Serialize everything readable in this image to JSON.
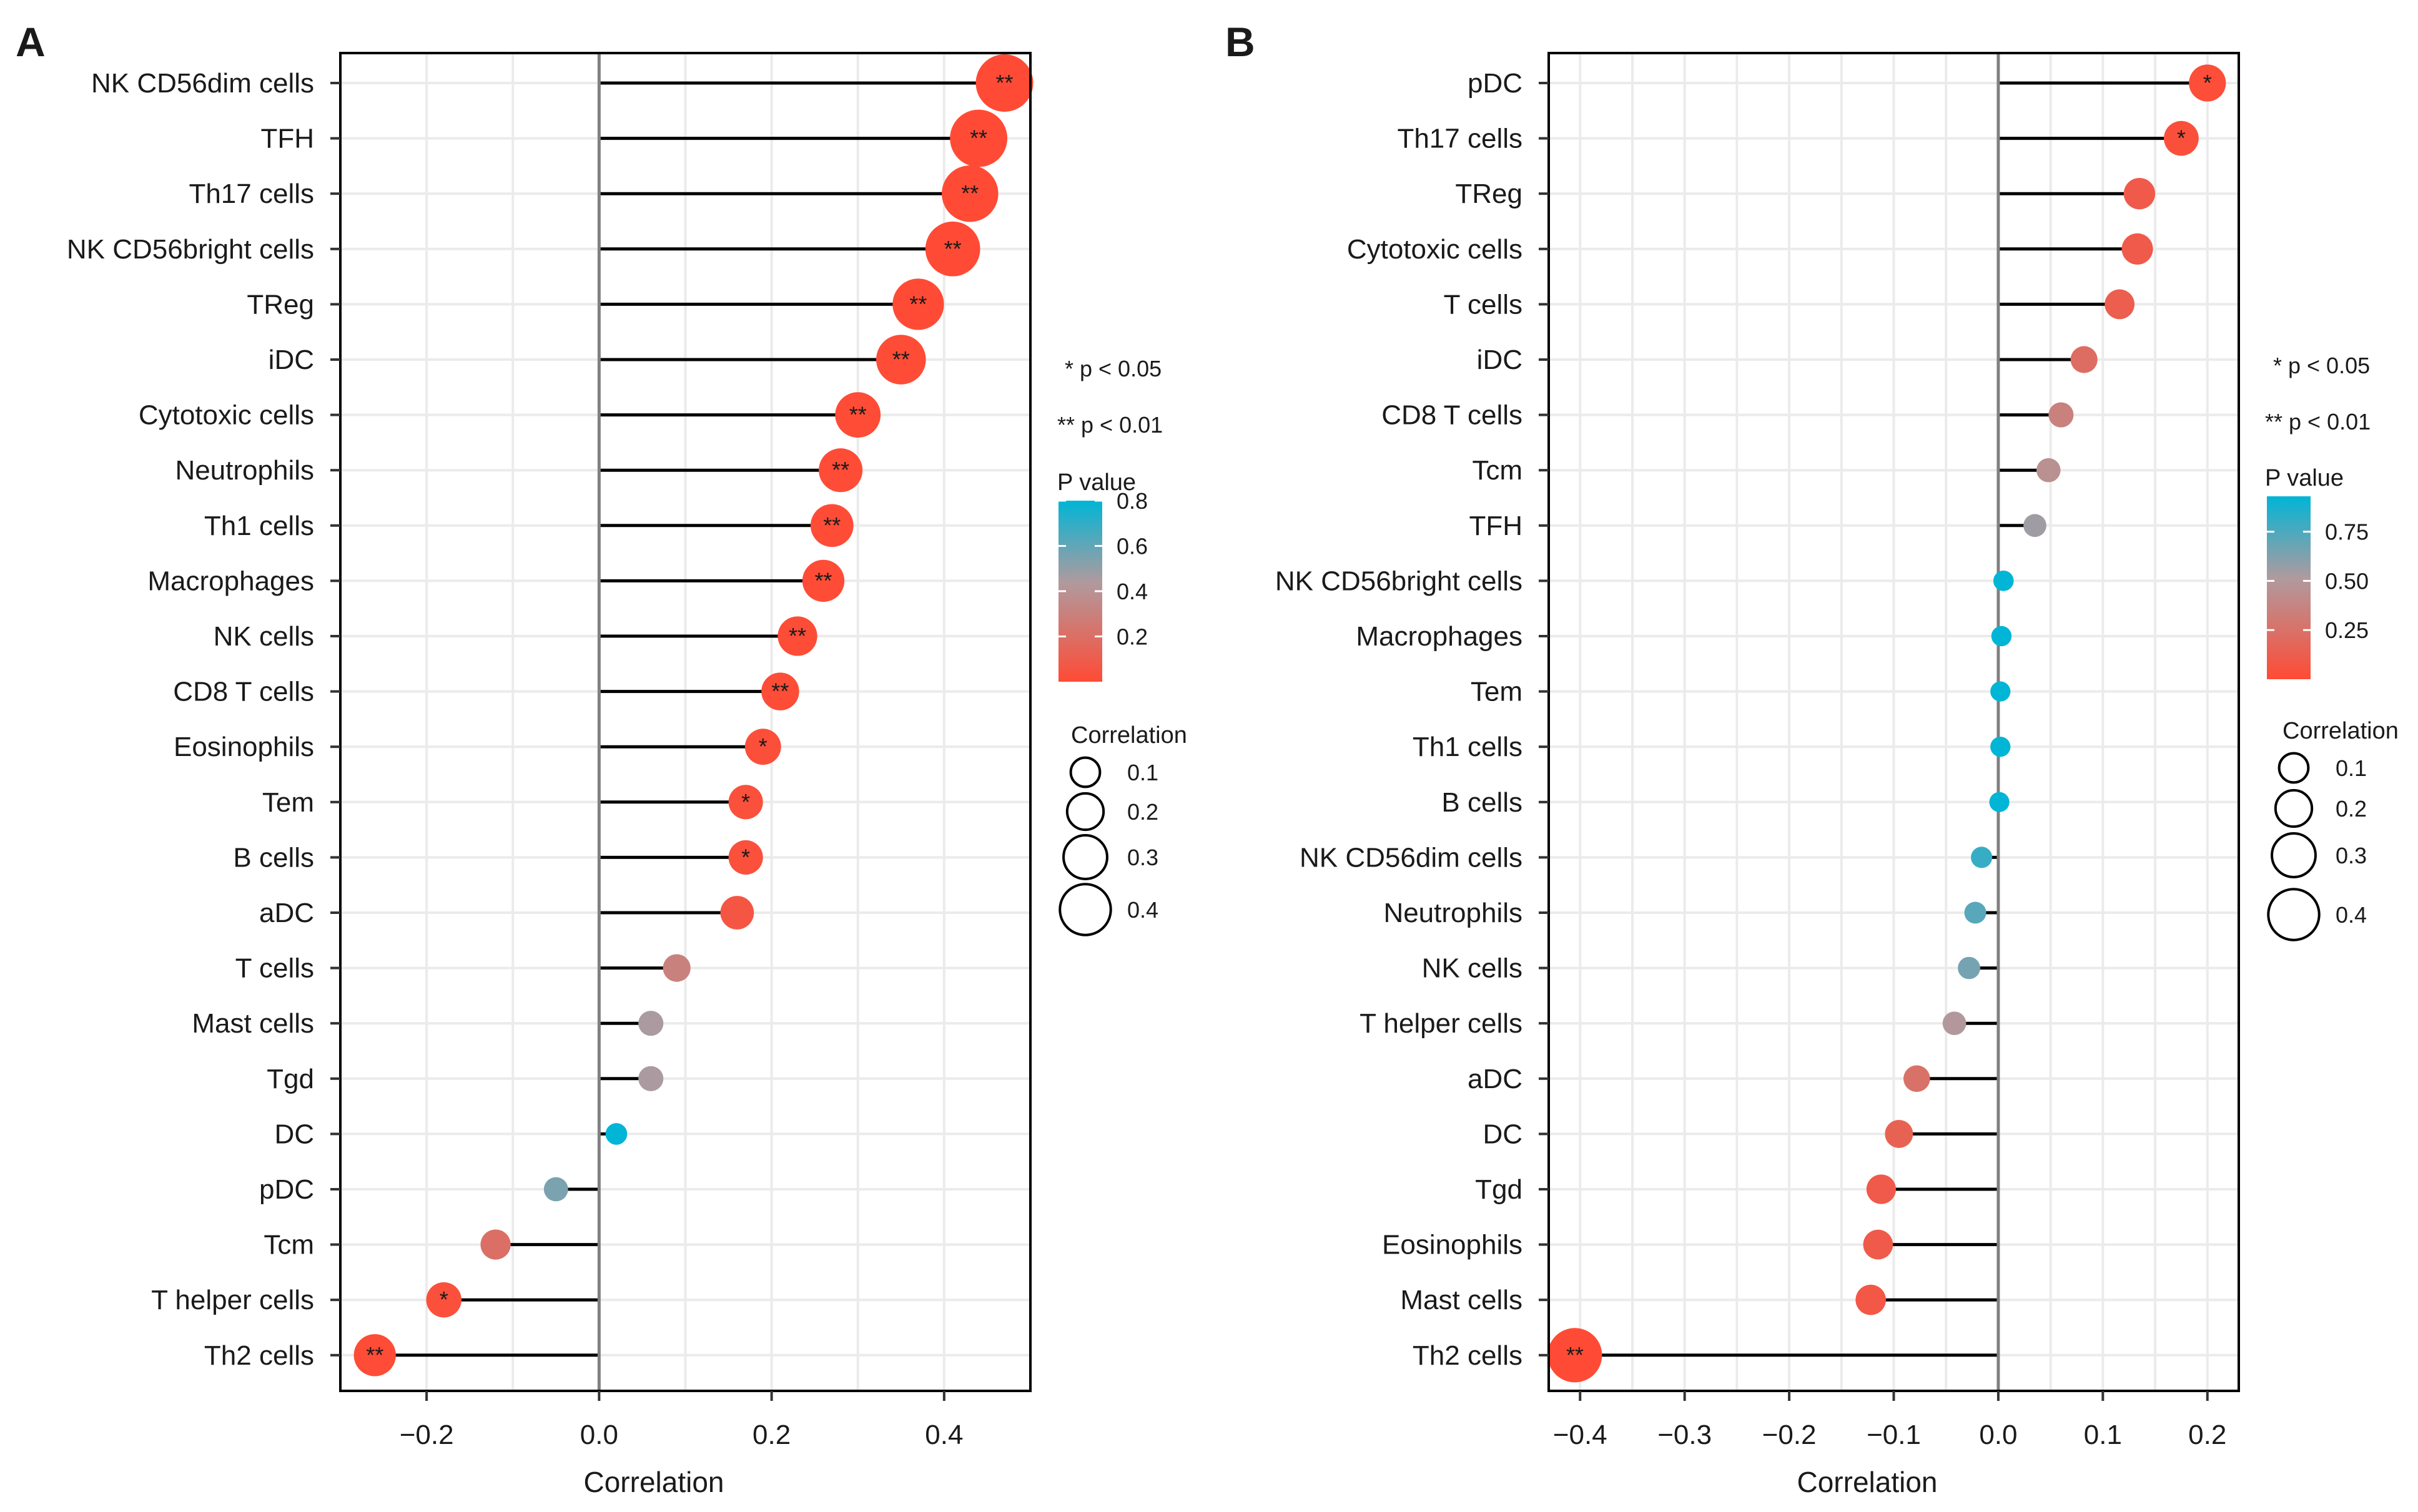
{
  "chart_data": [
    {
      "type": "lollipop",
      "panel_label": "A",
      "xlabel": "Correlation",
      "xlim": [
        -0.3,
        0.5
      ],
      "xticks": [
        -0.2,
        0.0,
        0.2,
        0.4
      ],
      "xtick_labels": [
        "−0.2",
        "0.0",
        "0.2",
        "0.4"
      ],
      "grid": true,
      "legend_notes": [
        "* p < 0.05",
        "** p < 0.01"
      ],
      "pvalue_legend": {
        "title": "P value",
        "range": [
          0,
          0.8
        ],
        "ticks": [
          0.8,
          0.6,
          0.4,
          0.2
        ],
        "tick_labels": [
          "0.8",
          "0.6",
          "0.4",
          "0.2"
        ]
      },
      "size_legend": {
        "title": "Correlation",
        "values": [
          0.1,
          0.2,
          0.3,
          0.4
        ],
        "labels": [
          "0.1",
          "0.2",
          "0.3",
          "0.4"
        ]
      },
      "categories": [
        "NK CD56dim cells",
        "TFH",
        "Th17 cells",
        "NK CD56bright cells",
        "TReg",
        "iDC",
        "Cytotoxic cells",
        "Neutrophils",
        "Th1 cells",
        "Macrophages",
        "NK cells",
        "CD8 T cells",
        "Eosinophils",
        "Tem",
        "B cells",
        "aDC",
        "T cells",
        "Mast cells",
        "Tgd",
        "DC",
        "pDC",
        "Tcm",
        "T helper cells",
        "Th2 cells"
      ],
      "values": [
        0.47,
        0.44,
        0.43,
        0.41,
        0.37,
        0.35,
        0.3,
        0.28,
        0.27,
        0.26,
        0.23,
        0.21,
        0.19,
        0.17,
        0.17,
        0.16,
        0.09,
        0.06,
        0.06,
        0.02,
        -0.05,
        -0.12,
        -0.18,
        -0.26
      ],
      "pvalues": [
        0.001,
        0.001,
        0.001,
        0.001,
        0.002,
        0.003,
        0.005,
        0.006,
        0.007,
        0.008,
        0.009,
        0.01,
        0.02,
        0.03,
        0.03,
        0.06,
        0.3,
        0.45,
        0.45,
        0.85,
        0.55,
        0.2,
        0.03,
        0.005
      ],
      "significance": [
        "**",
        "**",
        "**",
        "**",
        "**",
        "**",
        "**",
        "**",
        "**",
        "**",
        "**",
        "**",
        "*",
        "*",
        "*",
        "",
        "",
        "",
        "",
        "",
        "",
        "",
        "*",
        "**"
      ]
    },
    {
      "type": "lollipop",
      "panel_label": "B",
      "xlabel": "Correlation",
      "xlim": [
        -0.43,
        0.23
      ],
      "xticks": [
        -0.4,
        -0.3,
        -0.2,
        -0.1,
        0.0,
        0.1,
        0.2
      ],
      "xtick_labels": [
        "−0.4",
        "−0.3",
        "−0.2",
        "−0.1",
        "0.0",
        "0.1",
        "0.2"
      ],
      "grid": true,
      "legend_notes": [
        "* p < 0.05",
        "** p < 0.01"
      ],
      "pvalue_legend": {
        "title": "P value",
        "range": [
          0,
          0.93
        ],
        "ticks": [
          0.75,
          0.5,
          0.25
        ],
        "tick_labels": [
          "0.75",
          "0.50",
          "0.25"
        ]
      },
      "size_legend": {
        "title": "Correlation",
        "values": [
          0.1,
          0.2,
          0.3,
          0.4
        ],
        "labels": [
          "0.1",
          "0.2",
          "0.3",
          "0.4"
        ]
      },
      "categories": [
        "pDC",
        "Th17 cells",
        "TReg",
        "Cytotoxic cells",
        "T cells",
        "iDC",
        "CD8 T cells",
        "Tcm",
        "TFH",
        "NK CD56bright cells",
        "Macrophages",
        "Tem",
        "Th1 cells",
        "B cells",
        "NK CD56dim cells",
        "Neutrophils",
        "NK cells",
        "T helper cells",
        "aDC",
        "DC",
        "Tgd",
        "Eosinophils",
        "Mast cells",
        "Th2 cells"
      ],
      "values": [
        0.2,
        0.175,
        0.135,
        0.133,
        0.116,
        0.082,
        0.06,
        0.048,
        0.035,
        0.005,
        0.003,
        0.002,
        0.002,
        0.001,
        -0.016,
        -0.022,
        -0.028,
        -0.042,
        -0.078,
        -0.095,
        -0.112,
        -0.115,
        -0.122,
        -0.405
      ],
      "pvalues": [
        0.02,
        0.03,
        0.1,
        0.1,
        0.12,
        0.22,
        0.35,
        0.45,
        0.55,
        0.95,
        0.96,
        0.97,
        0.97,
        0.98,
        0.8,
        0.72,
        0.65,
        0.5,
        0.25,
        0.15,
        0.1,
        0.1,
        0.08,
        0.001
      ],
      "significance": [
        "*",
        "*",
        "",
        "",
        "",
        "",
        "",
        "",
        "",
        "",
        "",
        "",
        "",
        "",
        "",
        "",
        "",
        "",
        "",
        "",
        "",
        "",
        "",
        "**"
      ]
    }
  ]
}
